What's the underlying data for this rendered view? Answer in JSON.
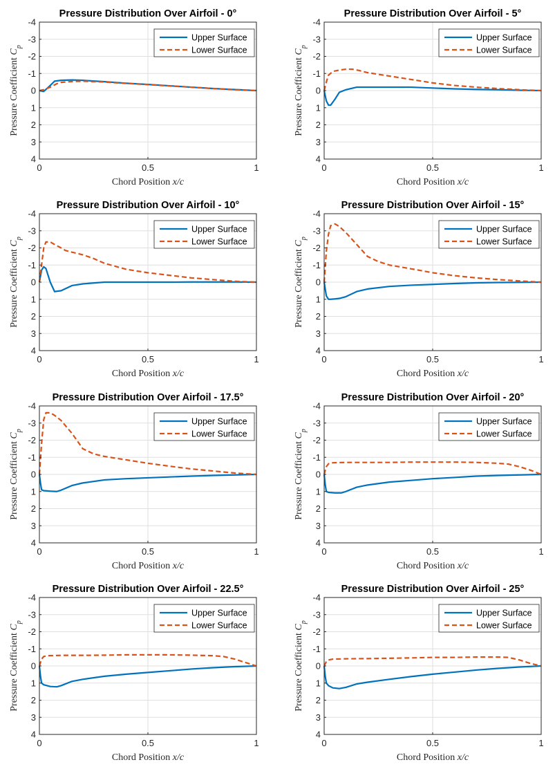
{
  "colors": {
    "upper": "#0072BD",
    "lower": "#D95319"
  },
  "chart_data": [
    {
      "type": "line",
      "title": "Pressure Distribution Over Airfoil - 0°",
      "xlabel": "Chord Position x/c",
      "ylabel": "Pressure Coefficient Cp",
      "xlim": [
        0,
        1
      ],
      "ylim": [
        -4,
        4
      ],
      "y_reversed": true,
      "grid": true,
      "legend": "top-right",
      "xticks": [
        "0",
        "0.5",
        "1"
      ],
      "yticks": [
        "-4",
        "-3",
        "-2",
        "-1",
        "0",
        "1",
        "2",
        "3",
        "4"
      ],
      "series": [
        {
          "name": "Upper Surface",
          "style": "solid",
          "x": [
            0,
            0.02,
            0.05,
            0.07,
            0.1,
            0.15,
            0.2,
            0.3,
            0.4,
            0.5,
            0.6,
            0.7,
            0.8,
            0.9,
            1.0
          ],
          "y": [
            0,
            0.05,
            -0.3,
            -0.55,
            -0.6,
            -0.62,
            -0.6,
            -0.52,
            -0.43,
            -0.36,
            -0.28,
            -0.2,
            -0.12,
            -0.06,
            0
          ]
        },
        {
          "name": "Lower Surface",
          "style": "dashed",
          "x": [
            0,
            0.02,
            0.05,
            0.08,
            0.1,
            0.15,
            0.2,
            0.3,
            0.4,
            0.5,
            0.6,
            0.7,
            0.8,
            0.9,
            1.0
          ],
          "y": [
            0,
            -0.05,
            -0.2,
            -0.4,
            -0.48,
            -0.53,
            -0.55,
            -0.5,
            -0.42,
            -0.35,
            -0.27,
            -0.2,
            -0.12,
            -0.05,
            0
          ]
        }
      ]
    },
    {
      "type": "line",
      "title": "Pressure Distribution Over Airfoil - 5°",
      "xlabel": "Chord Position x/c",
      "ylabel": "Pressure Coefficient Cp",
      "xlim": [
        0,
        1
      ],
      "ylim": [
        -4,
        4
      ],
      "y_reversed": true,
      "grid": true,
      "legend": "top-right",
      "xticks": [
        "0",
        "0.5",
        "1"
      ],
      "yticks": [
        "-4",
        "-3",
        "-2",
        "-1",
        "0",
        "1",
        "2",
        "3",
        "4"
      ],
      "series": [
        {
          "name": "Upper Surface",
          "style": "solid",
          "x": [
            0,
            0.01,
            0.02,
            0.03,
            0.05,
            0.07,
            0.1,
            0.15,
            0.2,
            0.3,
            0.4,
            0.5,
            0.6,
            0.7,
            0.8,
            0.9,
            1.0
          ],
          "y": [
            0,
            0.6,
            0.85,
            0.85,
            0.5,
            0.1,
            -0.05,
            -0.2,
            -0.2,
            -0.2,
            -0.2,
            -0.15,
            -0.1,
            -0.07,
            -0.05,
            -0.02,
            0
          ]
        },
        {
          "name": "Lower Surface",
          "style": "dashed",
          "x": [
            0,
            0.01,
            0.02,
            0.04,
            0.07,
            0.1,
            0.13,
            0.16,
            0.2,
            0.3,
            0.4,
            0.5,
            0.6,
            0.7,
            0.8,
            0.9,
            1.0
          ],
          "y": [
            0,
            -0.5,
            -0.9,
            -1.12,
            -1.2,
            -1.25,
            -1.25,
            -1.18,
            -1.05,
            -0.85,
            -0.65,
            -0.45,
            -0.3,
            -0.2,
            -0.12,
            -0.05,
            0
          ]
        }
      ]
    },
    {
      "type": "line",
      "title": "Pressure Distribution Over Airfoil - 10°",
      "xlabel": "Chord Position x/c",
      "ylabel": "Pressure Coefficient Cp",
      "xlim": [
        0,
        1
      ],
      "ylim": [
        -4,
        4
      ],
      "y_reversed": true,
      "grid": true,
      "legend": "top-right",
      "xticks": [
        "0",
        "0.5",
        "1"
      ],
      "yticks": [
        "-4",
        "-3",
        "-2",
        "-1",
        "0",
        "1",
        "2",
        "3",
        "4"
      ],
      "series": [
        {
          "name": "Upper Surface",
          "style": "solid",
          "x": [
            0,
            0.01,
            0.02,
            0.03,
            0.05,
            0.07,
            0.1,
            0.15,
            0.2,
            0.3,
            0.4,
            0.5,
            0.6,
            0.7,
            0.8,
            0.9,
            1.0
          ],
          "y": [
            0,
            -0.7,
            -0.9,
            -0.8,
            0.0,
            0.55,
            0.5,
            0.2,
            0.1,
            0.0,
            0.0,
            0.0,
            0.0,
            -0.01,
            -0.01,
            -0.01,
            0
          ]
        },
        {
          "name": "Lower Surface",
          "style": "dashed",
          "x": [
            0,
            0.01,
            0.02,
            0.03,
            0.05,
            0.07,
            0.1,
            0.12,
            0.15,
            0.2,
            0.25,
            0.3,
            0.4,
            0.5,
            0.6,
            0.7,
            0.8,
            0.9,
            1.0
          ],
          "y": [
            0,
            -1.0,
            -2.0,
            -2.35,
            -2.35,
            -2.2,
            -2.0,
            -1.85,
            -1.75,
            -1.6,
            -1.38,
            -1.1,
            -0.75,
            -0.55,
            -0.4,
            -0.25,
            -0.15,
            -0.05,
            0
          ]
        }
      ]
    },
    {
      "type": "line",
      "title": "Pressure Distribution Over Airfoil - 15°",
      "xlabel": "Chord Position x/c",
      "ylabel": "Pressure Coefficient Cp",
      "xlim": [
        0,
        1
      ],
      "ylim": [
        -4,
        4
      ],
      "y_reversed": true,
      "grid": true,
      "legend": "top-right",
      "xticks": [
        "0",
        "0.5",
        "1"
      ],
      "yticks": [
        "-4",
        "-3",
        "-2",
        "-1",
        "0",
        "1",
        "2",
        "3",
        "4"
      ],
      "series": [
        {
          "name": "Upper Surface",
          "style": "solid",
          "x": [
            0,
            0.005,
            0.01,
            0.02,
            0.03,
            0.05,
            0.07,
            0.1,
            0.15,
            0.2,
            0.3,
            0.4,
            0.5,
            0.6,
            0.7,
            0.8,
            0.9,
            1.0
          ],
          "y": [
            0,
            0.4,
            0.8,
            1.0,
            1.0,
            0.98,
            0.95,
            0.85,
            0.55,
            0.4,
            0.25,
            0.18,
            0.13,
            0.08,
            0.04,
            0.02,
            0.01,
            0
          ]
        },
        {
          "name": "Lower Surface",
          "style": "dashed",
          "x": [
            0,
            0.01,
            0.02,
            0.03,
            0.05,
            0.07,
            0.1,
            0.15,
            0.2,
            0.25,
            0.3,
            0.4,
            0.5,
            0.6,
            0.7,
            0.8,
            0.9,
            1.0
          ],
          "y": [
            0,
            -1.8,
            -2.8,
            -3.3,
            -3.4,
            -3.25,
            -2.9,
            -2.2,
            -1.5,
            -1.2,
            -1.0,
            -0.78,
            -0.55,
            -0.38,
            -0.25,
            -0.15,
            -0.07,
            0
          ]
        }
      ]
    },
    {
      "type": "line",
      "title": "Pressure Distribution Over Airfoil - 17.5°",
      "xlabel": "Chord Position x/c",
      "ylabel": "Pressure Coefficient Cp",
      "xlim": [
        0,
        1
      ],
      "ylim": [
        -4,
        4
      ],
      "y_reversed": true,
      "grid": true,
      "legend": "top-right",
      "xticks": [
        "0",
        "0.5",
        "1"
      ],
      "yticks": [
        "-4",
        "-3",
        "-2",
        "-1",
        "0",
        "1",
        "2",
        "3",
        "4"
      ],
      "series": [
        {
          "name": "Upper Surface",
          "style": "solid",
          "x": [
            0,
            0.005,
            0.01,
            0.02,
            0.05,
            0.08,
            0.1,
            0.15,
            0.2,
            0.3,
            0.4,
            0.5,
            0.6,
            0.7,
            0.8,
            0.9,
            1.0
          ],
          "y": [
            0,
            0.5,
            0.9,
            0.95,
            0.98,
            1.0,
            0.92,
            0.65,
            0.5,
            0.32,
            0.25,
            0.2,
            0.15,
            0.1,
            0.06,
            0.03,
            0
          ]
        },
        {
          "name": "Lower Surface",
          "style": "dashed",
          "x": [
            0,
            0.01,
            0.02,
            0.03,
            0.05,
            0.07,
            0.1,
            0.15,
            0.2,
            0.25,
            0.3,
            0.4,
            0.5,
            0.6,
            0.7,
            0.8,
            0.9,
            1.0
          ],
          "y": [
            0,
            -1.8,
            -3.2,
            -3.6,
            -3.6,
            -3.45,
            -3.15,
            -2.4,
            -1.5,
            -1.2,
            -1.05,
            -0.85,
            -0.65,
            -0.48,
            -0.32,
            -0.2,
            -0.08,
            0
          ]
        }
      ]
    },
    {
      "type": "line",
      "title": "Pressure Distribution Over Airfoil - 20°",
      "xlabel": "Chord Position x/c",
      "ylabel": "Pressure Coefficient Cp",
      "xlim": [
        0,
        1
      ],
      "ylim": [
        -4,
        4
      ],
      "y_reversed": true,
      "grid": true,
      "legend": "top-right",
      "xticks": [
        "0",
        "0.5",
        "1"
      ],
      "yticks": [
        "-4",
        "-3",
        "-2",
        "-1",
        "0",
        "1",
        "2",
        "3",
        "4"
      ],
      "series": [
        {
          "name": "Upper Surface",
          "style": "solid",
          "x": [
            0,
            0.005,
            0.01,
            0.02,
            0.05,
            0.08,
            0.1,
            0.15,
            0.2,
            0.3,
            0.4,
            0.5,
            0.6,
            0.7,
            0.8,
            0.9,
            1.0
          ],
          "y": [
            0,
            0.6,
            1.0,
            1.05,
            1.08,
            1.08,
            1.0,
            0.75,
            0.62,
            0.45,
            0.35,
            0.25,
            0.18,
            0.1,
            0.06,
            0.03,
            0
          ]
        },
        {
          "name": "Lower Surface",
          "style": "dashed",
          "x": [
            0,
            0.01,
            0.02,
            0.04,
            0.1,
            0.2,
            0.3,
            0.4,
            0.5,
            0.6,
            0.7,
            0.8,
            0.85,
            0.9,
            0.95,
            1.0
          ],
          "y": [
            0,
            -0.45,
            -0.62,
            -0.68,
            -0.7,
            -0.7,
            -0.7,
            -0.72,
            -0.72,
            -0.72,
            -0.7,
            -0.65,
            -0.6,
            -0.45,
            -0.25,
            0
          ]
        }
      ]
    },
    {
      "type": "line",
      "title": "Pressure Distribution Over Airfoil - 22.5°",
      "xlabel": "Chord Position x/c",
      "ylabel": "Pressure Coefficient Cp",
      "xlim": [
        0,
        1
      ],
      "ylim": [
        -4,
        4
      ],
      "y_reversed": true,
      "grid": true,
      "legend": "top-right",
      "xticks": [
        "0",
        "0.5",
        "1"
      ],
      "yticks": [
        "-4",
        "-3",
        "-2",
        "-1",
        "0",
        "1",
        "2",
        "3",
        "4"
      ],
      "series": [
        {
          "name": "Upper Surface",
          "style": "solid",
          "x": [
            0,
            0.005,
            0.01,
            0.02,
            0.05,
            0.08,
            0.1,
            0.15,
            0.2,
            0.3,
            0.4,
            0.5,
            0.6,
            0.7,
            0.8,
            0.9,
            1.0
          ],
          "y": [
            0,
            0.6,
            1.0,
            1.1,
            1.2,
            1.22,
            1.15,
            0.9,
            0.78,
            0.6,
            0.48,
            0.38,
            0.28,
            0.18,
            0.1,
            0.04,
            0
          ]
        },
        {
          "name": "Lower Surface",
          "style": "dashed",
          "x": [
            0,
            0.01,
            0.02,
            0.04,
            0.1,
            0.2,
            0.3,
            0.4,
            0.5,
            0.6,
            0.7,
            0.8,
            0.85,
            0.9,
            0.95,
            1.0
          ],
          "y": [
            0,
            -0.4,
            -0.55,
            -0.6,
            -0.62,
            -0.62,
            -0.63,
            -0.65,
            -0.65,
            -0.65,
            -0.63,
            -0.6,
            -0.55,
            -0.4,
            -0.2,
            0
          ]
        }
      ]
    },
    {
      "type": "line",
      "title": "Pressure Distribution Over Airfoil - 25°",
      "xlabel": "Chord Position x/c",
      "ylabel": "Pressure Coefficient Cp",
      "xlim": [
        0,
        1
      ],
      "ylim": [
        -4,
        4
      ],
      "y_reversed": true,
      "grid": true,
      "legend": "top-right",
      "xticks": [
        "0",
        "0.5",
        "1"
      ],
      "yticks": [
        "-4",
        "-3",
        "-2",
        "-1",
        "0",
        "1",
        "2",
        "3",
        "4"
      ],
      "series": [
        {
          "name": "Upper Surface",
          "style": "solid",
          "x": [
            0,
            0.005,
            0.01,
            0.02,
            0.04,
            0.07,
            0.1,
            0.15,
            0.2,
            0.3,
            0.4,
            0.5,
            0.6,
            0.7,
            0.8,
            0.9,
            1.0
          ],
          "y": [
            0,
            0.6,
            1.0,
            1.15,
            1.28,
            1.32,
            1.25,
            1.05,
            0.95,
            0.78,
            0.62,
            0.48,
            0.36,
            0.24,
            0.14,
            0.06,
            0
          ]
        },
        {
          "name": "Lower Surface",
          "style": "dashed",
          "x": [
            0,
            0.01,
            0.02,
            0.04,
            0.1,
            0.2,
            0.3,
            0.4,
            0.5,
            0.6,
            0.7,
            0.8,
            0.85,
            0.9,
            0.95,
            1.0
          ],
          "y": [
            0,
            -0.25,
            -0.35,
            -0.4,
            -0.42,
            -0.43,
            -0.45,
            -0.47,
            -0.5,
            -0.5,
            -0.52,
            -0.52,
            -0.5,
            -0.35,
            -0.15,
            0
          ]
        }
      ]
    }
  ]
}
